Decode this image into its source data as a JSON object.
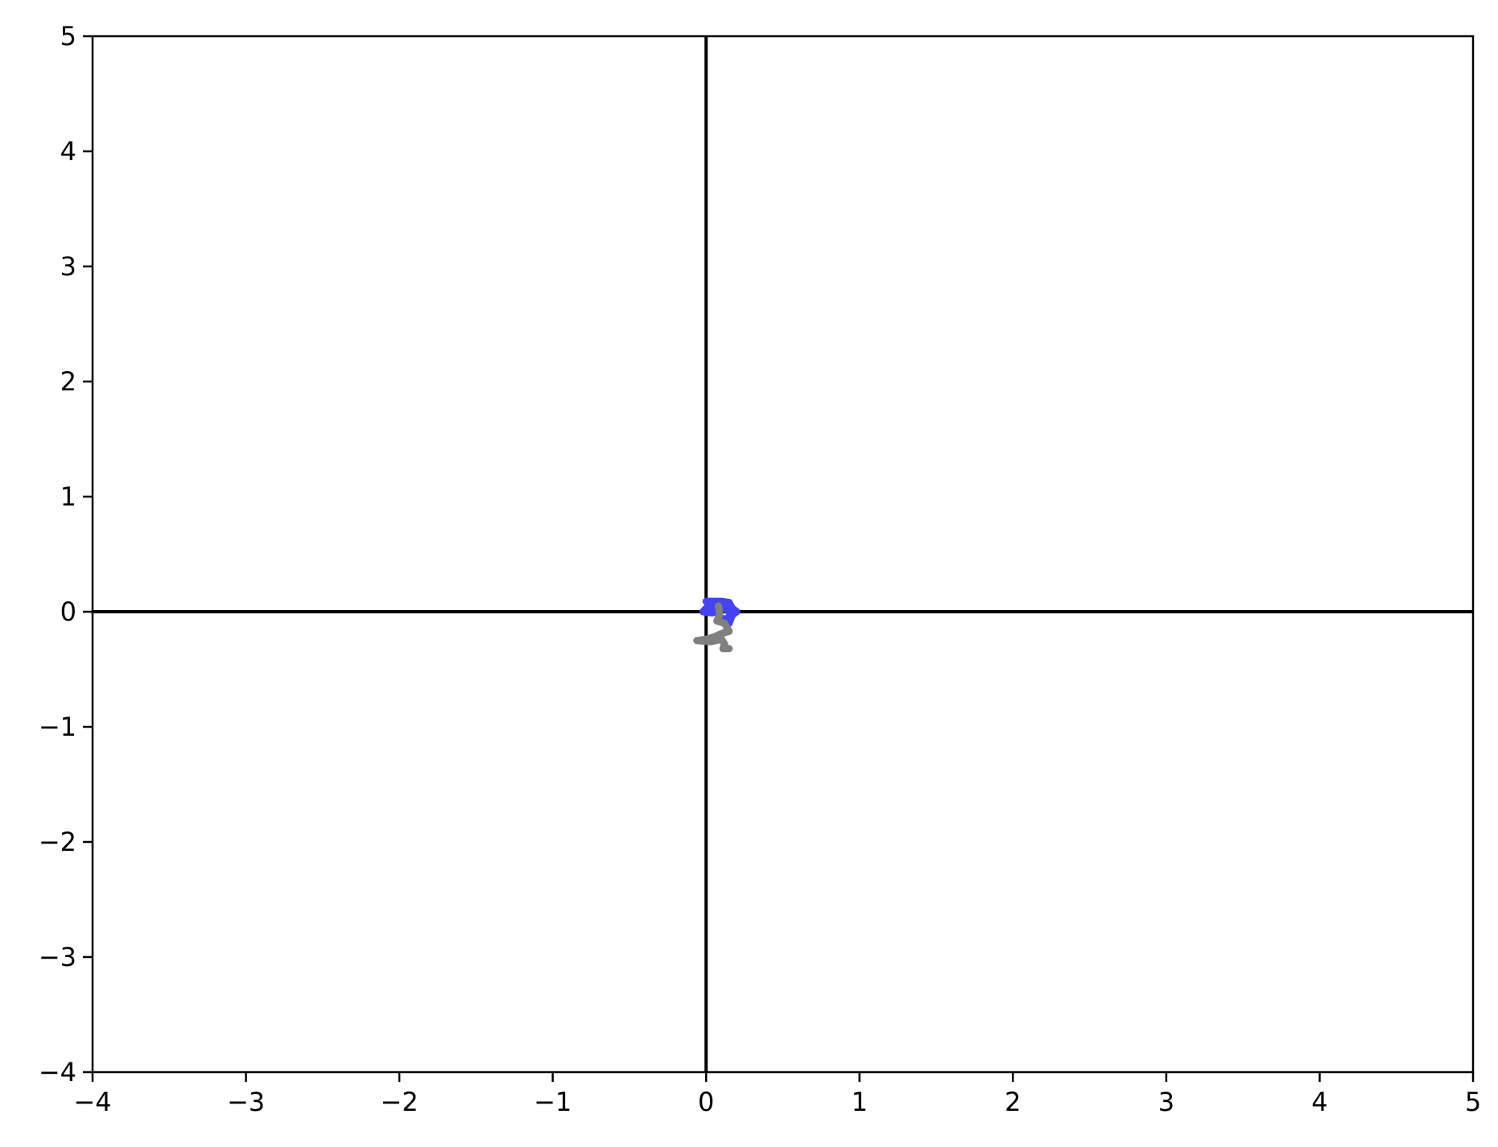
{
  "chart_data": {
    "type": "line",
    "title": "",
    "xlabel": "",
    "ylabel": "",
    "xlim": [
      -4,
      5
    ],
    "ylim": [
      -4,
      5
    ],
    "grid": false,
    "reference_lines": {
      "horizontal_y": 0,
      "vertical_x": 0,
      "color": "#000000"
    },
    "x_ticks": [
      -4,
      -3,
      -2,
      -1,
      0,
      1,
      2,
      3,
      4,
      5
    ],
    "y_ticks": [
      -4,
      -3,
      -2,
      -1,
      0,
      1,
      2,
      3,
      4,
      5
    ],
    "x_tick_labels": [
      "−4",
      "−3",
      "−2",
      "−1",
      "0",
      "1",
      "2",
      "3",
      "4",
      "5"
    ],
    "y_tick_labels": [
      "−4",
      "−3",
      "−2",
      "−1",
      "0",
      "1",
      "2",
      "3",
      "4",
      "5"
    ],
    "series": [
      {
        "color": "#4444ee",
        "points": [
          [
            0.0,
            0.09
          ],
          [
            0.05,
            0.09
          ],
          [
            0.1,
            0.09
          ],
          [
            0.15,
            0.08
          ],
          [
            0.17,
            0.03
          ],
          [
            0.2,
            0.0
          ],
          [
            0.15,
            -0.04
          ],
          [
            0.18,
            -0.02
          ],
          [
            0.14,
            0.04
          ],
          [
            0.06,
            0.05
          ],
          [
            0.09,
            0.01
          ],
          [
            0.04,
            -0.01
          ],
          [
            -0.02,
            0.0
          ],
          [
            0.0,
            0.03
          ],
          [
            0.05,
            0.04
          ],
          [
            0.1,
            0.06
          ],
          [
            0.14,
            0.01
          ],
          [
            0.17,
            -0.03
          ],
          [
            0.15,
            -0.1
          ],
          [
            0.12,
            -0.06
          ]
        ]
      },
      {
        "color": "#808080",
        "points": [
          [
            0.08,
            0.05
          ],
          [
            0.09,
            -0.02
          ],
          [
            0.07,
            -0.08
          ],
          [
            0.12,
            -0.1
          ],
          [
            0.15,
            -0.17
          ],
          [
            0.1,
            -0.19
          ],
          [
            0.05,
            -0.22
          ],
          [
            0.0,
            -0.24
          ],
          [
            -0.06,
            -0.25
          ],
          [
            0.03,
            -0.26
          ],
          [
            0.1,
            -0.24
          ],
          [
            0.12,
            -0.28
          ],
          [
            0.11,
            -0.32
          ],
          [
            0.15,
            -0.32
          ]
        ]
      }
    ]
  }
}
